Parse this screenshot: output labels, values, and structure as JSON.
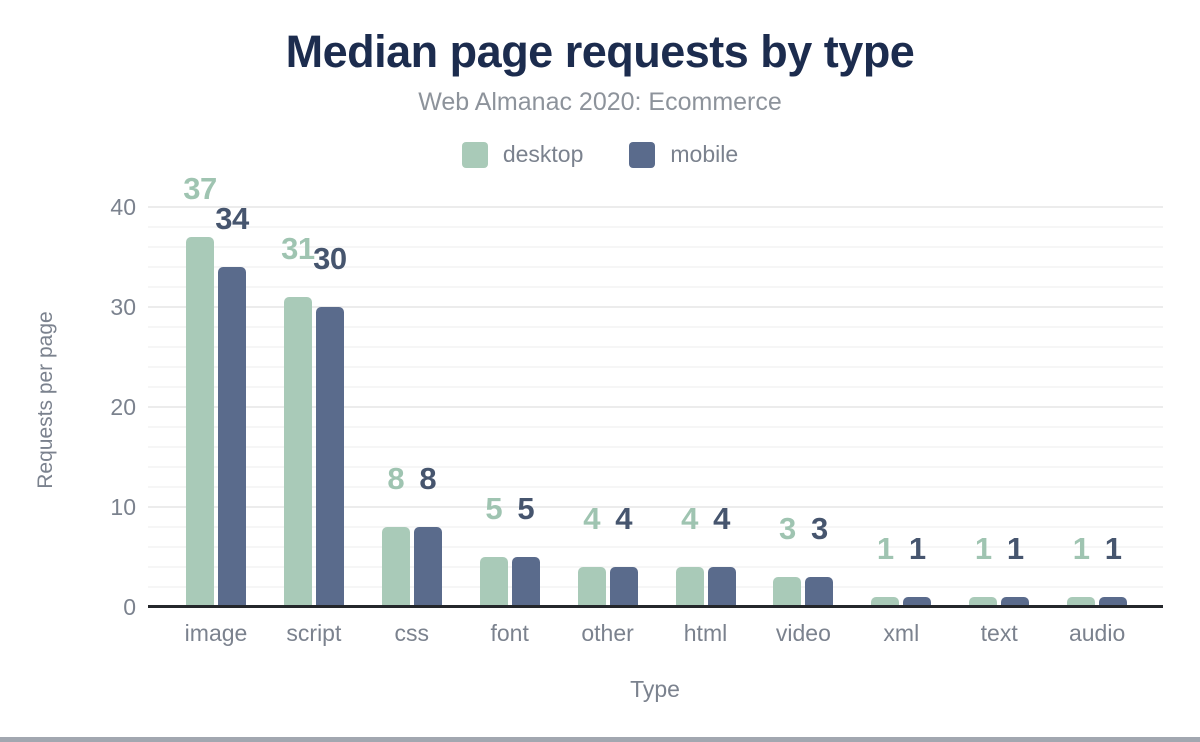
{
  "title": "Median page requests by type",
  "subtitle": "Web Almanac 2020: Ecommerce",
  "chart_data": {
    "type": "bar",
    "categories": [
      "image",
      "script",
      "css",
      "font",
      "other",
      "html",
      "video",
      "xml",
      "text",
      "audio"
    ],
    "series": [
      {
        "name": "desktop",
        "color": "#a9cab8",
        "label_color": "#9fc4b1",
        "values": [
          37,
          31,
          8,
          5,
          4,
          4,
          3,
          1,
          1,
          1
        ]
      },
      {
        "name": "mobile",
        "color": "#5a6b8c",
        "label_color": "#46556e",
        "values": [
          34,
          30,
          8,
          5,
          4,
          4,
          3,
          1,
          1,
          1
        ]
      }
    ],
    "title": "Median page requests by type",
    "subtitle": "Web Almanac 2020: Ecommerce",
    "xlabel": "Type",
    "ylabel": "Requests per page",
    "ylim": [
      0,
      40
    ],
    "yticks": [
      0,
      10,
      20,
      30,
      40
    ],
    "grid": "horizontal, minor every 2 units, major every 10 units",
    "legend_position": "top",
    "value_labels": true
  },
  "colors": {
    "title_text": "#1c2c4e",
    "subtitle_text": "#8d939b",
    "axis_text": "#7b828e",
    "axis_line": "#24272b",
    "grid_major": "#ececec",
    "grid_minor": "#f6f6f6",
    "bottom_bar": "#a2a7b0",
    "background": "#ffffff"
  }
}
